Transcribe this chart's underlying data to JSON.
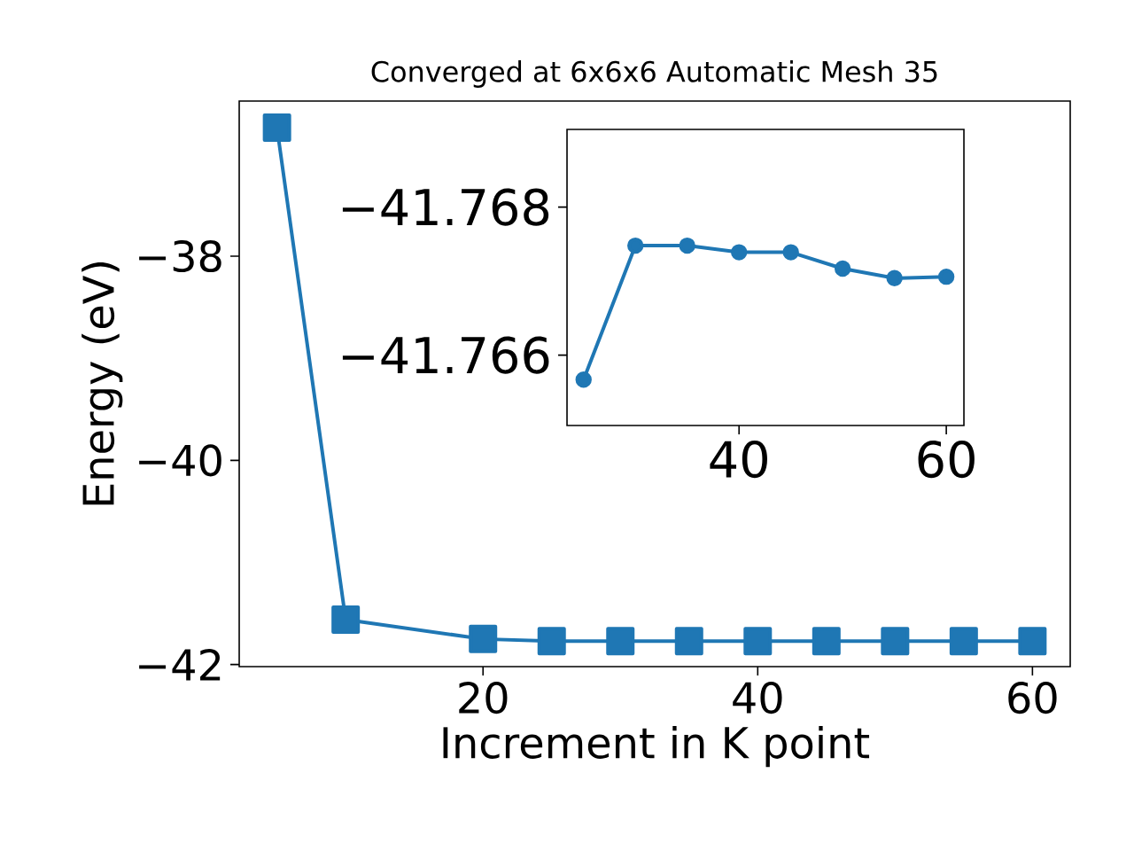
{
  "chart_data": [
    {
      "type": "line",
      "title": "Converged at 6x6x6 Automatic Mesh 35",
      "xlabel": "Increment in K point",
      "ylabel": "Energy (eV)",
      "x": [
        5,
        10,
        20,
        25,
        30,
        35,
        40,
        45,
        50,
        55,
        60
      ],
      "series": [
        {
          "color": "#1f77b4",
          "values": [
            -36.74,
            -41.56,
            -41.75,
            -41.77,
            -41.77,
            -41.77,
            -41.77,
            -41.77,
            -41.77,
            -41.77,
            -41.77
          ]
        }
      ],
      "xlim": [
        2.25,
        62.75
      ],
      "ylim": [
        -42.02,
        -36.48
      ],
      "xticks": [
        20,
        40,
        60
      ],
      "yticks": [
        {
          "value": -42,
          "label": "−42"
        },
        {
          "value": -40,
          "label": "−40"
        },
        {
          "value": -38,
          "label": "−38"
        }
      ],
      "marker": "square",
      "line_style": "solid"
    },
    {
      "type": "line",
      "x": [
        25,
        30,
        35,
        40,
        45,
        50,
        55,
        60
      ],
      "series": [
        {
          "color": "#1f77b4",
          "values": [
            -41.76567,
            -41.76748,
            -41.76748,
            -41.76739,
            -41.76739,
            -41.76717,
            -41.76704,
            -41.76706
          ]
        }
      ],
      "xlim": [
        23.4,
        61.7
      ],
      "ylim": [
        -41.76505,
        -41.76905
      ],
      "xticks": [
        40,
        60
      ],
      "yticks": [
        {
          "value": -41.768,
          "label": "−41.768"
        },
        {
          "value": -41.766,
          "label": "−41.766"
        }
      ],
      "marker": "circle",
      "line_style": "solid"
    }
  ]
}
